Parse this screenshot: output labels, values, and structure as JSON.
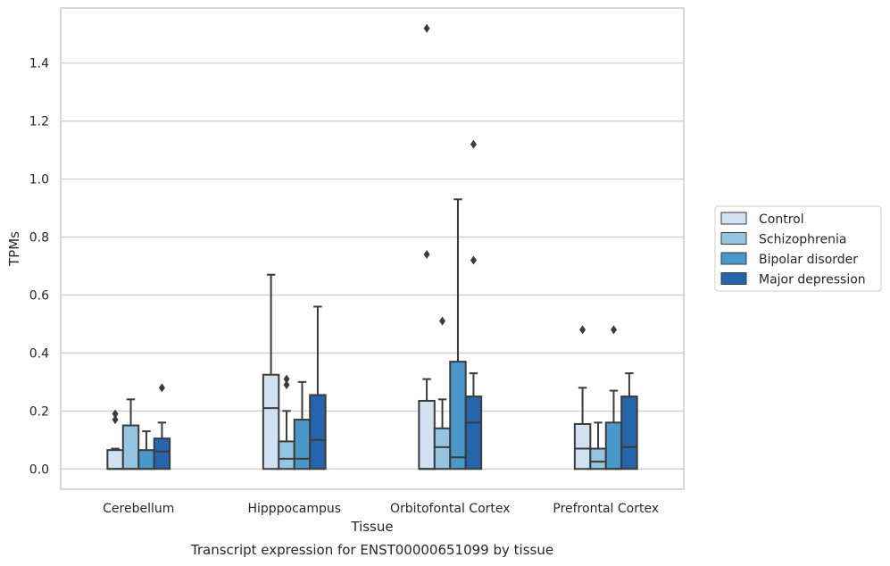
{
  "chart_data": {
    "type": "boxplot",
    "title": "",
    "caption": "Transcript expression for ENST00000651099 by tissue",
    "xlabel": "Tissue",
    "ylabel": "TPMs",
    "ylim": [
      -0.07,
      1.59
    ],
    "yticks": [
      0.0,
      0.2,
      0.4,
      0.6,
      0.8,
      1.0,
      1.2,
      1.4
    ],
    "ytick_labels": [
      "0.0",
      "0.2",
      "0.4",
      "0.6",
      "0.8",
      "1.0",
      "1.2",
      "1.4"
    ],
    "grid": "horizontal",
    "legend_position": "outside-right",
    "categories": [
      "Cerebellum",
      "Hipppocampus",
      "Orbitofontal Cortex",
      "Prefrontal Cortex"
    ],
    "series": [
      {
        "name": "Control",
        "color": "#d0e1f2",
        "boxes": [
          {
            "whisker_low": 0.0,
            "q1": 0.0,
            "median": 0.0,
            "q3": 0.065,
            "whisker_high": 0.07,
            "outliers": [
              0.17,
              0.19
            ]
          },
          {
            "whisker_low": 0.0,
            "q1": 0.0,
            "median": 0.21,
            "q3": 0.325,
            "whisker_high": 0.67,
            "outliers": []
          },
          {
            "whisker_low": 0.0,
            "q1": 0.0,
            "median": 0.0,
            "q3": 0.235,
            "whisker_high": 0.31,
            "outliers": [
              0.74,
              1.52
            ]
          },
          {
            "whisker_low": 0.0,
            "q1": 0.0,
            "median": 0.07,
            "q3": 0.155,
            "whisker_high": 0.28,
            "outliers": [
              0.48
            ]
          }
        ]
      },
      {
        "name": "Schizophrenia",
        "color": "#94c4df",
        "boxes": [
          {
            "whisker_low": 0.0,
            "q1": 0.0,
            "median": 0.0,
            "q3": 0.15,
            "whisker_high": 0.24,
            "outliers": []
          },
          {
            "whisker_low": 0.0,
            "q1": 0.0,
            "median": 0.035,
            "q3": 0.095,
            "whisker_high": 0.2,
            "outliers": [
              0.29,
              0.31
            ]
          },
          {
            "whisker_low": 0.0,
            "q1": 0.0,
            "median": 0.075,
            "q3": 0.14,
            "whisker_high": 0.24,
            "outliers": [
              0.51
            ]
          },
          {
            "whisker_low": 0.0,
            "q1": 0.0,
            "median": 0.025,
            "q3": 0.07,
            "whisker_high": 0.16,
            "outliers": []
          }
        ]
      },
      {
        "name": "Bipolar disorder",
        "color": "#4a98c9",
        "boxes": [
          {
            "whisker_low": 0.0,
            "q1": 0.0,
            "median": 0.0,
            "q3": 0.065,
            "whisker_high": 0.13,
            "outliers": []
          },
          {
            "whisker_low": 0.0,
            "q1": 0.0,
            "median": 0.035,
            "q3": 0.17,
            "whisker_high": 0.3,
            "outliers": []
          },
          {
            "whisker_low": 0.0,
            "q1": 0.0,
            "median": 0.04,
            "q3": 0.37,
            "whisker_high": 0.93,
            "outliers": []
          },
          {
            "whisker_low": 0.0,
            "q1": 0.0,
            "median": 0.0,
            "q3": 0.16,
            "whisker_high": 0.27,
            "outliers": [
              0.48
            ]
          }
        ]
      },
      {
        "name": "Major depression",
        "color": "#2565ab",
        "boxes": [
          {
            "whisker_low": 0.0,
            "q1": 0.0,
            "median": 0.06,
            "q3": 0.105,
            "whisker_high": 0.16,
            "outliers": [
              0.28
            ]
          },
          {
            "whisker_low": 0.0,
            "q1": 0.0,
            "median": 0.1,
            "q3": 0.255,
            "whisker_high": 0.56,
            "outliers": []
          },
          {
            "whisker_low": 0.0,
            "q1": 0.0,
            "median": 0.16,
            "q3": 0.25,
            "whisker_high": 0.33,
            "outliers": [
              0.72,
              1.12
            ]
          },
          {
            "whisker_low": 0.0,
            "q1": 0.0,
            "median": 0.075,
            "q3": 0.25,
            "whisker_high": 0.33,
            "outliers": []
          }
        ]
      }
    ]
  }
}
